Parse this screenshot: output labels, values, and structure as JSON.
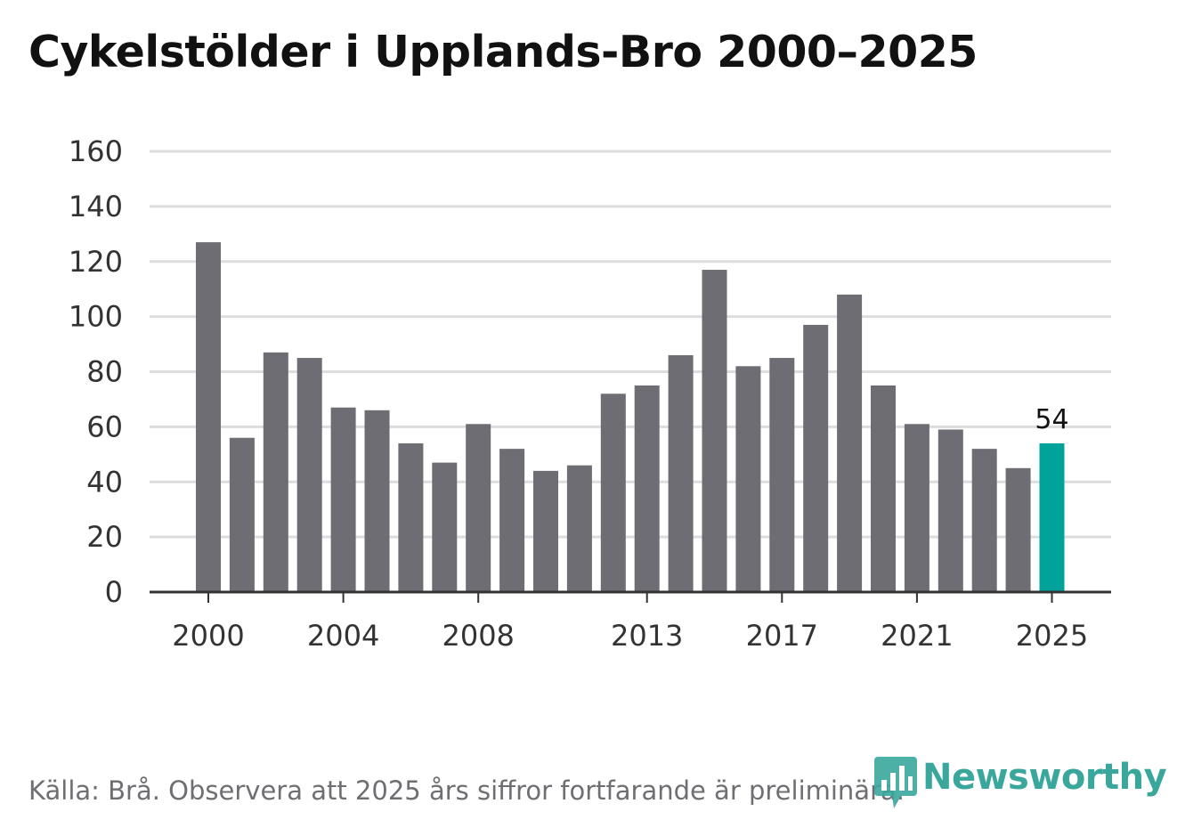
{
  "chart_data": {
    "type": "bar",
    "title": "Cykelstölder i Upplands-Bro 2000–2025",
    "xlabel": "",
    "ylabel": "",
    "ylim": [
      0,
      160
    ],
    "yticks": [
      0,
      20,
      40,
      60,
      80,
      100,
      120,
      140,
      160
    ],
    "xticks": [
      2000,
      2004,
      2008,
      2013,
      2017,
      2021,
      2025
    ],
    "x_range": [
      2000,
      2025
    ],
    "grid": true,
    "categories": [
      2000,
      2001,
      2002,
      2003,
      2004,
      2005,
      2006,
      2007,
      2008,
      2009,
      2010,
      2011,
      2012,
      2013,
      2014,
      2015,
      2016,
      2017,
      2018,
      2019,
      2020,
      2021,
      2022,
      2023,
      2024,
      2025
    ],
    "values": [
      127,
      56,
      87,
      85,
      67,
      66,
      54,
      47,
      61,
      52,
      44,
      46,
      72,
      75,
      86,
      117,
      82,
      85,
      97,
      108,
      75,
      61,
      59,
      52,
      45,
      54
    ],
    "highlight": {
      "year": 2025,
      "label": "54",
      "color": "#00a39a"
    },
    "colors": {
      "bar": "#6e6d73",
      "highlight": "#00a39a",
      "grid": "#dddddd",
      "axis": "#333333"
    }
  },
  "footer": {
    "source": "Källa: Brå. Observera att 2025 års siffror fortfarande är preliminära.",
    "brand": "Newsworthy",
    "brand_icon": "bar-chart-icon",
    "brand_color": "#3aa79d"
  }
}
